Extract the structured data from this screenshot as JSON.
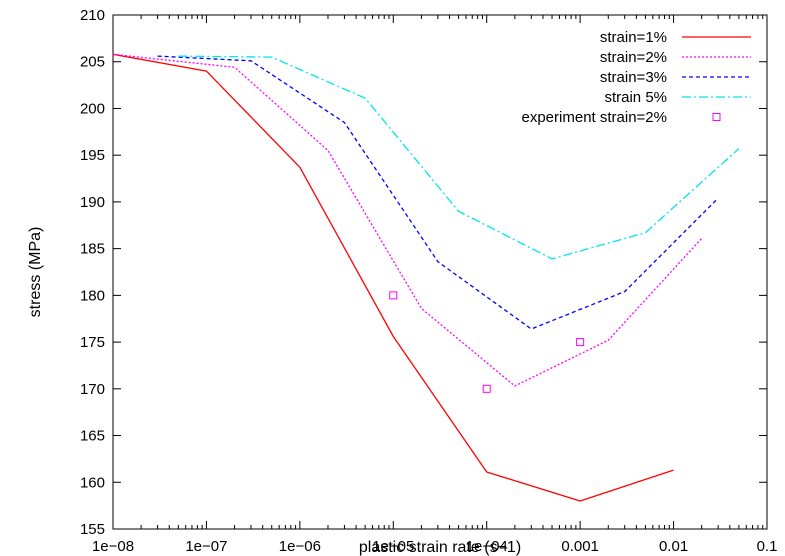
{
  "chart_data": {
    "type": "line",
    "title": "",
    "xlabel": "plastic strain rate (s−1)",
    "ylabel": "stress (MPa)",
    "xscale": "log",
    "xlim": [
      1e-08,
      0.1
    ],
    "ylim": [
      155,
      210
    ],
    "x_ticks": [
      1e-08,
      1e-07,
      1e-06,
      1e-05,
      0.0001,
      0.001,
      0.01,
      0.1
    ],
    "x_tick_labels": [
      "1e−08",
      "1e−07",
      "1e−06",
      "1e−05",
      "1e−04",
      "0.001",
      "0.01",
      "0.1"
    ],
    "y_ticks": [
      155,
      160,
      165,
      170,
      175,
      180,
      185,
      190,
      195,
      200,
      205,
      210
    ],
    "y_tick_labels": [
      "155",
      "160",
      "165",
      "170",
      "175",
      "180",
      "185",
      "190",
      "195",
      "200",
      "205",
      "210"
    ],
    "grid": false,
    "legend_position": "top-right",
    "series": [
      {
        "name": "strain=1%",
        "color": "#ff0000",
        "style": "solid",
        "x": [
          1e-08,
          1e-07,
          1e-06,
          1e-05,
          0.0001,
          0.001,
          0.01
        ],
        "y": [
          205.8,
          204.0,
          193.7,
          175.6,
          161.1,
          158.0,
          161.3
        ]
      },
      {
        "name": "strain=2%",
        "color": "#ff00ff",
        "style": "dotted",
        "x": [
          1e-08,
          2e-07,
          2e-06,
          2e-05,
          0.0002,
          0.002,
          0.02
        ],
        "y": [
          205.8,
          204.4,
          195.5,
          178.6,
          170.3,
          175.2,
          186.1
        ]
      },
      {
        "name": "strain=3%",
        "color": "#0000ff",
        "style": "dashed",
        "x": [
          3e-08,
          3e-07,
          3e-06,
          3e-05,
          0.0003,
          0.003,
          0.03
        ],
        "y": [
          205.6,
          205.1,
          198.5,
          183.6,
          176.4,
          180.4,
          190.4
        ]
      },
      {
        "name": "strain 5%",
        "color": "#00e5ee",
        "style": "dashdot",
        "x": [
          5e-08,
          5e-07,
          5e-06,
          5e-05,
          0.0005,
          0.005,
          0.05
        ],
        "y": [
          205.6,
          205.5,
          201.1,
          189.0,
          183.9,
          186.7,
          195.7
        ]
      },
      {
        "name": "experiment strain=2%",
        "color": "#ff00ff",
        "style": "markers",
        "marker": "open-square",
        "x": [
          1e-05,
          0.0001,
          0.001
        ],
        "y": [
          180.0,
          170.0,
          175.0
        ]
      }
    ]
  }
}
